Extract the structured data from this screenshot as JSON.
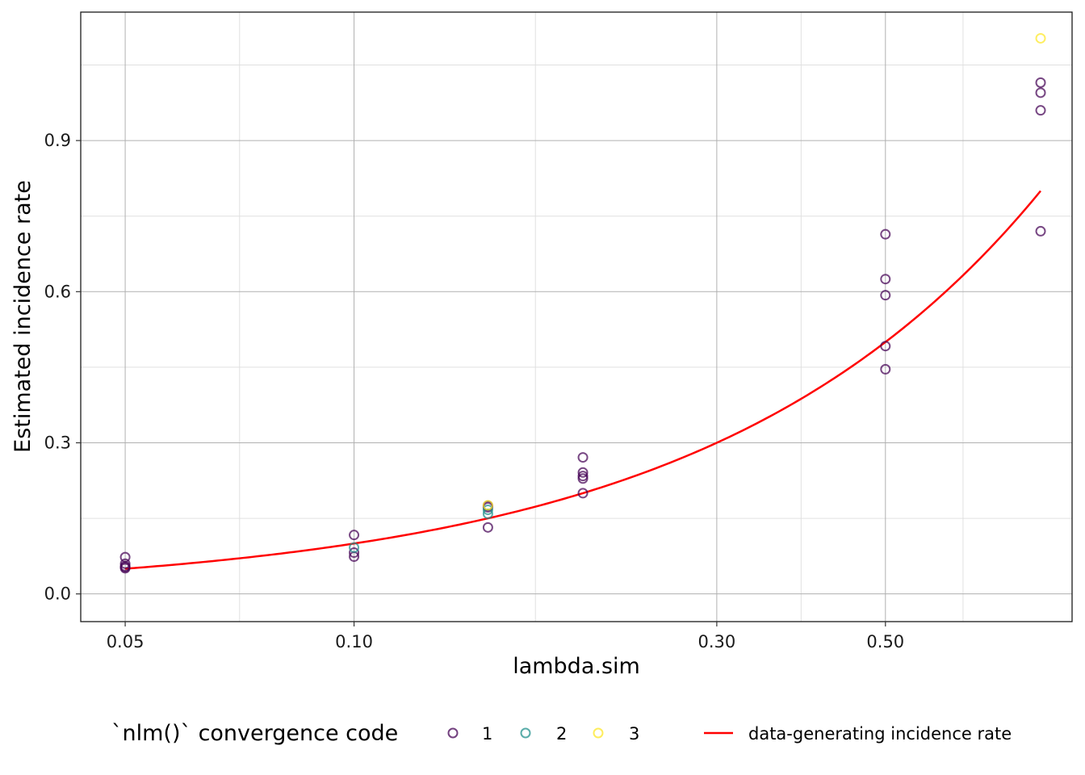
{
  "chart_data": {
    "type": "scatter",
    "xlabel": "lambda.sim",
    "ylabel": "Estimated incidence rate",
    "x_scale": "log",
    "xlim": [
      0.0437,
      0.88
    ],
    "ylim": [
      -0.055,
      1.155
    ],
    "x_ticks": [
      {
        "value": 0.05,
        "label": "0.05"
      },
      {
        "value": 0.1,
        "label": "0.10"
      },
      {
        "value": 0.3,
        "label": "0.30"
      },
      {
        "value": 0.5,
        "label": "0.50"
      }
    ],
    "x_minor_ticks": [
      0.0707,
      0.1732,
      0.3873,
      0.6325
    ],
    "y_ticks": [
      {
        "value": 0.0,
        "label": "0.0"
      },
      {
        "value": 0.3,
        "label": "0.3"
      },
      {
        "value": 0.6,
        "label": "0.6"
      },
      {
        "value": 0.9,
        "label": "0.9"
      }
    ],
    "y_minor_ticks": [
      0.15,
      0.45,
      0.75,
      1.05
    ],
    "grid": true,
    "legend_position": "bottom",
    "legend_title": "`nlm()` convergence code",
    "series": [
      {
        "name": "1",
        "color": "#440154",
        "points": [
          {
            "x": 0.05,
            "y": 0.073
          },
          {
            "x": 0.05,
            "y": 0.06
          },
          {
            "x": 0.05,
            "y": 0.055
          },
          {
            "x": 0.05,
            "y": 0.053
          },
          {
            "x": 0.05,
            "y": 0.051
          },
          {
            "x": 0.1,
            "y": 0.117
          },
          {
            "x": 0.1,
            "y": 0.082
          },
          {
            "x": 0.1,
            "y": 0.074
          },
          {
            "x": 0.15,
            "y": 0.175
          },
          {
            "x": 0.15,
            "y": 0.172
          },
          {
            "x": 0.15,
            "y": 0.132
          },
          {
            "x": 0.2,
            "y": 0.271
          },
          {
            "x": 0.2,
            "y": 0.241
          },
          {
            "x": 0.2,
            "y": 0.234
          },
          {
            "x": 0.2,
            "y": 0.229
          },
          {
            "x": 0.2,
            "y": 0.2
          },
          {
            "x": 0.5,
            "y": 0.714
          },
          {
            "x": 0.5,
            "y": 0.625
          },
          {
            "x": 0.5,
            "y": 0.593
          },
          {
            "x": 0.5,
            "y": 0.492
          },
          {
            "x": 0.5,
            "y": 0.446
          },
          {
            "x": 0.8,
            "y": 1.015
          },
          {
            "x": 0.8,
            "y": 0.995
          },
          {
            "x": 0.8,
            "y": 0.96
          },
          {
            "x": 0.8,
            "y": 0.72
          }
        ]
      },
      {
        "name": "2",
        "color": "#21908C",
        "points": [
          {
            "x": 0.1,
            "y": 0.092
          },
          {
            "x": 0.15,
            "y": 0.167
          },
          {
            "x": 0.15,
            "y": 0.159
          }
        ]
      },
      {
        "name": "3",
        "color": "#FDE725",
        "points": [
          {
            "x": 0.15,
            "y": 0.176
          },
          {
            "x": 0.8,
            "y": 1.103
          }
        ]
      }
    ],
    "line": {
      "name": "data-generating incidence rate",
      "color": "#ff0000",
      "x_from": 0.05,
      "x_to": 0.8,
      "formula": "y = x"
    }
  },
  "legend": {
    "title": "`nlm()` convergence code",
    "items": [
      {
        "label": "1",
        "color": "#440154"
      },
      {
        "label": "2",
        "color": "#21908C"
      },
      {
        "label": "3",
        "color": "#FDE725"
      }
    ],
    "line_label": "data-generating incidence rate",
    "line_color": "#ff0000"
  }
}
